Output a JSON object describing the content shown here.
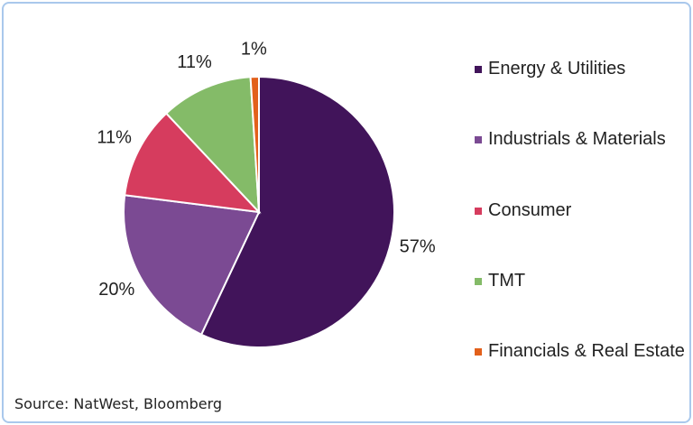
{
  "chart_data": {
    "type": "pie",
    "categories": [
      "Energy & Utilities",
      "Industrials & Materials",
      "Consumer",
      "TMT",
      "Financials & Real Estate"
    ],
    "values": [
      57,
      20,
      11,
      11,
      1
    ],
    "value_labels": [
      "57%",
      "20%",
      "11%",
      "11%",
      "1%"
    ],
    "colors": [
      "#41145a",
      "#7b4a93",
      "#d63c5e",
      "#84bb68",
      "#e2601b"
    ],
    "source": "Source: NatWest, Bloomberg"
  }
}
